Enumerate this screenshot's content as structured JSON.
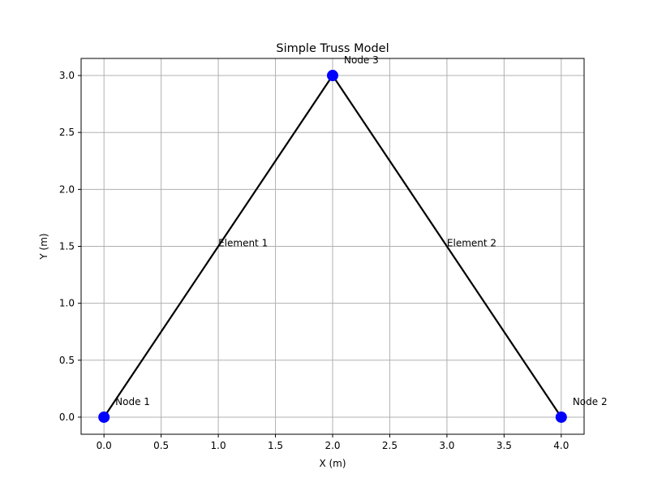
{
  "chart_data": {
    "type": "line",
    "title": "Simple Truss Model",
    "xlabel": "X (m)",
    "ylabel": "Y (m)",
    "xlim": [
      -0.2,
      4.2
    ],
    "ylim": [
      -0.15,
      3.15
    ],
    "xticks": [
      0.0,
      0.5,
      1.0,
      1.5,
      2.0,
      2.5,
      3.0,
      3.5,
      4.0
    ],
    "yticks": [
      0.0,
      0.5,
      1.0,
      1.5,
      2.0,
      2.5,
      3.0
    ],
    "xtick_labels": [
      "0.0",
      "0.5",
      "1.0",
      "1.5",
      "2.0",
      "2.5",
      "3.0",
      "3.5",
      "4.0"
    ],
    "ytick_labels": [
      "0.0",
      "0.5",
      "1.0",
      "1.5",
      "2.0",
      "2.5",
      "3.0"
    ],
    "grid": true,
    "nodes": [
      {
        "label": "Node 1",
        "x": 0,
        "y": 0
      },
      {
        "label": "Node 2",
        "x": 4,
        "y": 0
      },
      {
        "label": "Node 3",
        "x": 2,
        "y": 3
      }
    ],
    "elements": [
      {
        "label": "Element 1",
        "from": 0,
        "to": 2,
        "label_x": 1.0,
        "label_y": 1.5
      },
      {
        "label": "Element 2",
        "from": 2,
        "to": 1,
        "label_x": 3.0,
        "label_y": 1.5
      }
    ],
    "colors": {
      "node": "#0000ff",
      "element": "#000000",
      "grid": "#b0b0b0"
    }
  }
}
